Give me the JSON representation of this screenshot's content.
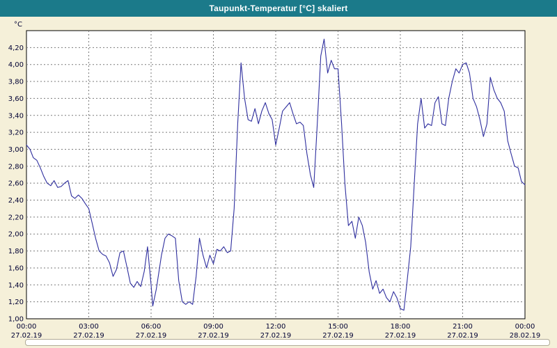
{
  "window": {
    "title": "Taupunkt-Temperatur [°C] skaliert"
  },
  "colors": {
    "titlebar_bg": "#1b7a8a",
    "titlebar_text": "#ffffff",
    "page_bg": "#f5f0d9",
    "plot_bg": "#ffffff",
    "grid": "#7a7a7a",
    "border": "#000000",
    "line": "#2e2e9e",
    "axis_text": "#000033"
  },
  "chart_data": {
    "type": "line",
    "title": "Taupunkt-Temperatur [°C] skaliert",
    "ylabel": "°C",
    "xlabel": "",
    "grid": true,
    "legend": "none",
    "ylim": [
      1.0,
      4.4
    ],
    "x_hours_range": [
      0,
      24
    ],
    "yticks": [
      {
        "v": 4.2,
        "label": "4,20"
      },
      {
        "v": 4.0,
        "label": "4,00"
      },
      {
        "v": 3.8,
        "label": "3,80"
      },
      {
        "v": 3.6,
        "label": "3,60"
      },
      {
        "v": 3.4,
        "label": "3,40"
      },
      {
        "v": 3.2,
        "label": "3,20"
      },
      {
        "v": 3.0,
        "label": "3,00"
      },
      {
        "v": 2.8,
        "label": "2,80"
      },
      {
        "v": 2.6,
        "label": "2,60"
      },
      {
        "v": 2.4,
        "label": "2,40"
      },
      {
        "v": 2.2,
        "label": "2,20"
      },
      {
        "v": 2.0,
        "label": "2,00"
      },
      {
        "v": 1.8,
        "label": "1,80"
      },
      {
        "v": 1.6,
        "label": "1,60"
      },
      {
        "v": 1.4,
        "label": "1,40"
      },
      {
        "v": 1.2,
        "label": "1,20"
      },
      {
        "v": 1.0,
        "label": "1,00"
      }
    ],
    "xticks": [
      {
        "hour": 0,
        "time": "00:00",
        "date": "27.02.19"
      },
      {
        "hour": 3,
        "time": "03:00",
        "date": "27.02.19"
      },
      {
        "hour": 6,
        "time": "06:00",
        "date": "27.02.19"
      },
      {
        "hour": 9,
        "time": "09:00",
        "date": "27.02.19"
      },
      {
        "hour": 12,
        "time": "12:00",
        "date": "27.02.19"
      },
      {
        "hour": 15,
        "time": "15:00",
        "date": "27.02.19"
      },
      {
        "hour": 18,
        "time": "18:00",
        "date": "27.02.19"
      },
      {
        "hour": 21,
        "time": "21:00",
        "date": "27.02.19"
      },
      {
        "hour": 24,
        "time": "00:00",
        "date": "28.02.19"
      }
    ],
    "series": [
      {
        "name": "Taupunkt-Temperatur",
        "color": "#2e2e9e",
        "points": [
          [
            0.0,
            3.05
          ],
          [
            0.17,
            3.0
          ],
          [
            0.33,
            2.9
          ],
          [
            0.5,
            2.87
          ],
          [
            0.67,
            2.78
          ],
          [
            0.83,
            2.68
          ],
          [
            1.0,
            2.6
          ],
          [
            1.17,
            2.57
          ],
          [
            1.33,
            2.63
          ],
          [
            1.5,
            2.55
          ],
          [
            1.67,
            2.56
          ],
          [
            1.83,
            2.6
          ],
          [
            2.0,
            2.63
          ],
          [
            2.17,
            2.45
          ],
          [
            2.33,
            2.42
          ],
          [
            2.5,
            2.46
          ],
          [
            2.67,
            2.42
          ],
          [
            2.83,
            2.36
          ],
          [
            3.0,
            2.3
          ],
          [
            3.17,
            2.12
          ],
          [
            3.33,
            1.95
          ],
          [
            3.5,
            1.8
          ],
          [
            3.67,
            1.76
          ],
          [
            3.83,
            1.74
          ],
          [
            4.0,
            1.66
          ],
          [
            4.17,
            1.5
          ],
          [
            4.33,
            1.58
          ],
          [
            4.5,
            1.78
          ],
          [
            4.67,
            1.8
          ],
          [
            4.83,
            1.62
          ],
          [
            5.0,
            1.42
          ],
          [
            5.17,
            1.37
          ],
          [
            5.33,
            1.44
          ],
          [
            5.5,
            1.38
          ],
          [
            5.67,
            1.56
          ],
          [
            5.83,
            1.85
          ],
          [
            6.0,
            1.4
          ],
          [
            6.08,
            1.15
          ],
          [
            6.25,
            1.35
          ],
          [
            6.5,
            1.75
          ],
          [
            6.67,
            1.95
          ],
          [
            6.83,
            2.0
          ],
          [
            7.0,
            1.98
          ],
          [
            7.17,
            1.95
          ],
          [
            7.33,
            1.45
          ],
          [
            7.5,
            1.2
          ],
          [
            7.67,
            1.17
          ],
          [
            7.83,
            1.2
          ],
          [
            8.0,
            1.17
          ],
          [
            8.17,
            1.5
          ],
          [
            8.33,
            1.95
          ],
          [
            8.5,
            1.75
          ],
          [
            8.67,
            1.6
          ],
          [
            8.83,
            1.75
          ],
          [
            9.0,
            1.65
          ],
          [
            9.17,
            1.82
          ],
          [
            9.33,
            1.8
          ],
          [
            9.5,
            1.85
          ],
          [
            9.67,
            1.78
          ],
          [
            9.83,
            1.8
          ],
          [
            10.0,
            2.3
          ],
          [
            10.17,
            3.3
          ],
          [
            10.33,
            4.02
          ],
          [
            10.5,
            3.6
          ],
          [
            10.67,
            3.35
          ],
          [
            10.83,
            3.33
          ],
          [
            11.0,
            3.48
          ],
          [
            11.17,
            3.3
          ],
          [
            11.33,
            3.45
          ],
          [
            11.5,
            3.55
          ],
          [
            11.67,
            3.42
          ],
          [
            11.83,
            3.35
          ],
          [
            12.0,
            3.05
          ],
          [
            12.17,
            3.25
          ],
          [
            12.33,
            3.45
          ],
          [
            12.5,
            3.5
          ],
          [
            12.67,
            3.55
          ],
          [
            12.83,
            3.42
          ],
          [
            13.0,
            3.3
          ],
          [
            13.17,
            3.32
          ],
          [
            13.33,
            3.28
          ],
          [
            13.5,
            2.95
          ],
          [
            13.67,
            2.7
          ],
          [
            13.83,
            2.55
          ],
          [
            14.0,
            3.3
          ],
          [
            14.17,
            4.1
          ],
          [
            14.33,
            4.3
          ],
          [
            14.5,
            3.9
          ],
          [
            14.67,
            4.05
          ],
          [
            14.83,
            3.95
          ],
          [
            15.0,
            3.95
          ],
          [
            15.17,
            3.3
          ],
          [
            15.33,
            2.6
          ],
          [
            15.5,
            2.1
          ],
          [
            15.67,
            2.15
          ],
          [
            15.83,
            1.95
          ],
          [
            16.0,
            2.2
          ],
          [
            16.17,
            2.1
          ],
          [
            16.33,
            1.9
          ],
          [
            16.5,
            1.55
          ],
          [
            16.67,
            1.35
          ],
          [
            16.83,
            1.45
          ],
          [
            17.0,
            1.3
          ],
          [
            17.17,
            1.35
          ],
          [
            17.33,
            1.25
          ],
          [
            17.5,
            1.2
          ],
          [
            17.67,
            1.32
          ],
          [
            17.83,
            1.25
          ],
          [
            18.0,
            1.12
          ],
          [
            18.17,
            1.1
          ],
          [
            18.33,
            1.45
          ],
          [
            18.5,
            1.85
          ],
          [
            18.67,
            2.6
          ],
          [
            18.83,
            3.3
          ],
          [
            19.0,
            3.6
          ],
          [
            19.17,
            3.25
          ],
          [
            19.33,
            3.3
          ],
          [
            19.5,
            3.28
          ],
          [
            19.67,
            3.55
          ],
          [
            19.83,
            3.62
          ],
          [
            20.0,
            3.3
          ],
          [
            20.17,
            3.28
          ],
          [
            20.33,
            3.6
          ],
          [
            20.5,
            3.8
          ],
          [
            20.67,
            3.95
          ],
          [
            20.83,
            3.9
          ],
          [
            21.0,
            4.0
          ],
          [
            21.17,
            4.02
          ],
          [
            21.33,
            3.9
          ],
          [
            21.5,
            3.6
          ],
          [
            21.67,
            3.5
          ],
          [
            21.83,
            3.35
          ],
          [
            22.0,
            3.15
          ],
          [
            22.17,
            3.3
          ],
          [
            22.33,
            3.85
          ],
          [
            22.5,
            3.7
          ],
          [
            22.67,
            3.6
          ],
          [
            22.83,
            3.55
          ],
          [
            23.0,
            3.45
          ],
          [
            23.17,
            3.1
          ],
          [
            23.33,
            2.95
          ],
          [
            23.5,
            2.8
          ],
          [
            23.67,
            2.78
          ],
          [
            23.83,
            2.62
          ],
          [
            24.0,
            2.58
          ]
        ]
      }
    ]
  }
}
